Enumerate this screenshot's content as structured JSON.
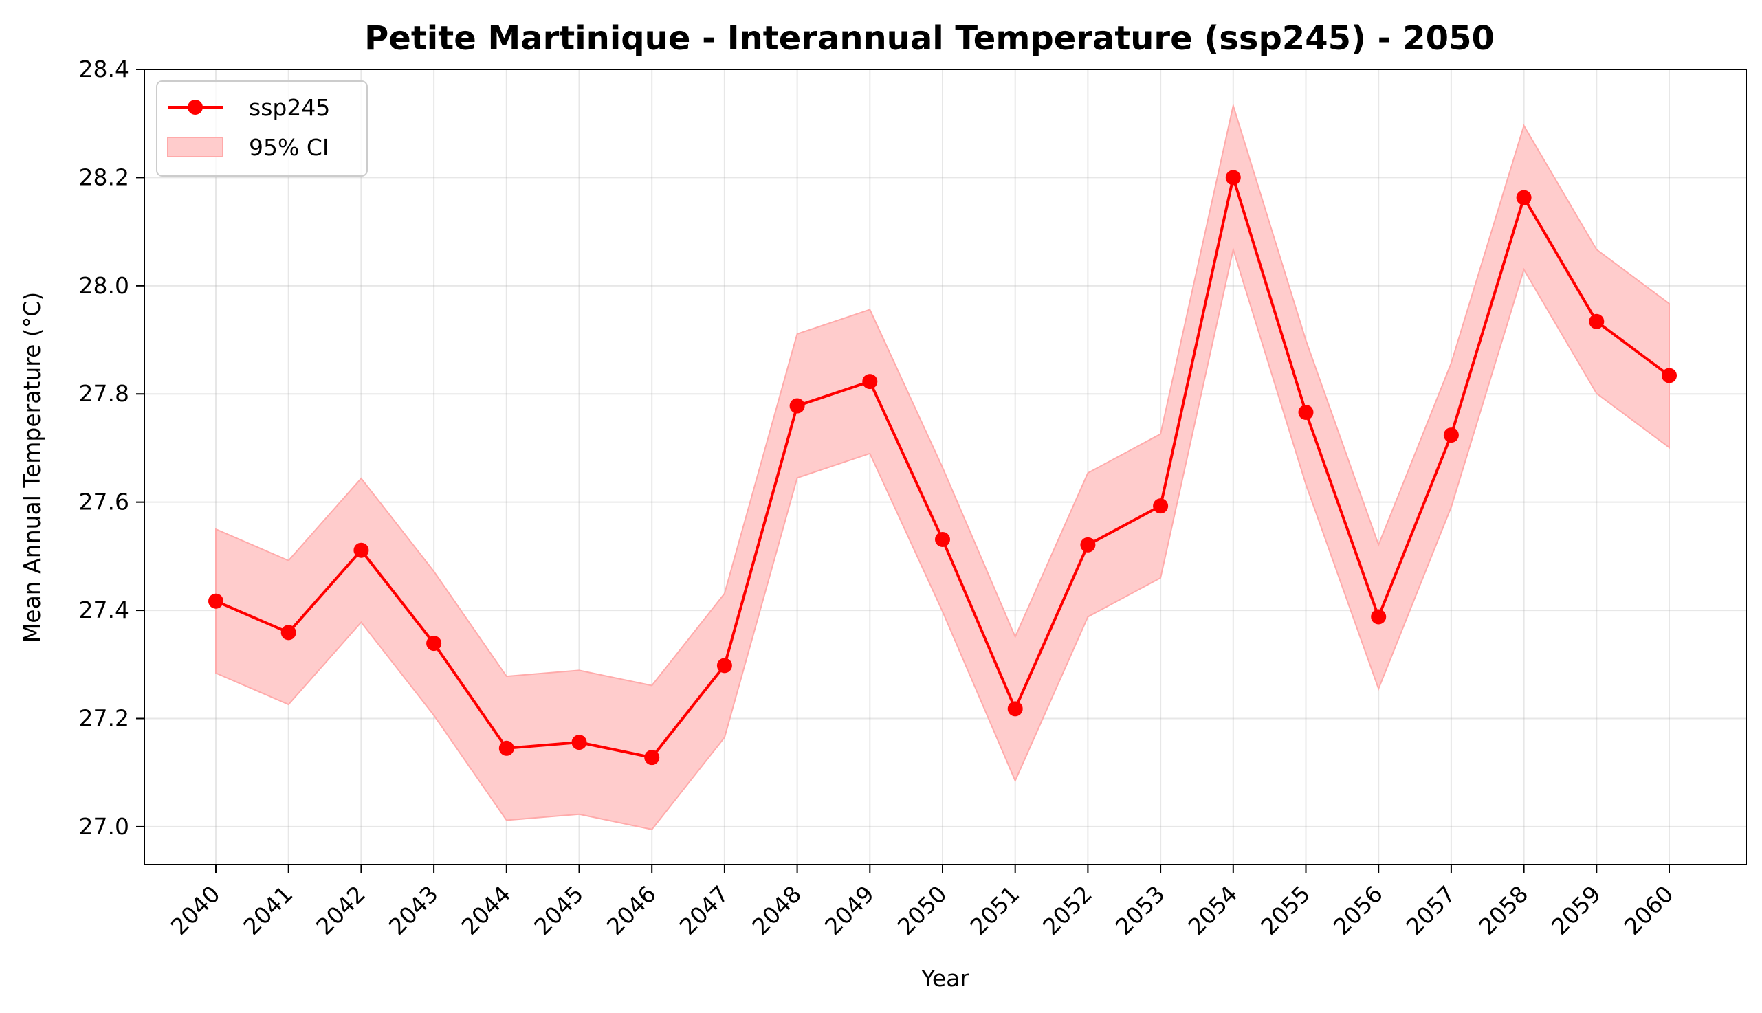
{
  "chart_data": {
    "type": "line",
    "title": "Petite Martinique - Interannual Temperature (ssp245) - 2050",
    "xlabel": "Year",
    "ylabel": "Mean Annual Temperature (°C)",
    "categories": [
      "2040",
      "2041",
      "2042",
      "2043",
      "2044",
      "2045",
      "2046",
      "2047",
      "2048",
      "2049",
      "2050",
      "2051",
      "2052",
      "2053",
      "2054",
      "2055",
      "2056",
      "2057",
      "2058",
      "2059",
      "2060"
    ],
    "ylim": [
      26.93,
      28.4
    ],
    "yticks": [
      "27.0",
      "27.2",
      "27.4",
      "27.6",
      "27.8",
      "28.0",
      "28.2",
      "28.4"
    ],
    "grid": true,
    "legend_position": "upper left",
    "series": [
      {
        "name": "ssp245",
        "color": "#ff0000",
        "marker": "circle",
        "values": [
          27.417,
          27.359,
          27.511,
          27.339,
          27.145,
          27.156,
          27.128,
          27.298,
          27.778,
          27.823,
          27.531,
          27.218,
          27.521,
          27.593,
          28.2,
          27.766,
          27.388,
          27.724,
          28.163,
          27.934,
          27.834
        ]
      }
    ],
    "confidence_band": {
      "name": "95% CI",
      "color": "#ffcccc",
      "edge_color": "#ffaaaa",
      "lower": [
        27.284,
        27.226,
        27.378,
        27.206,
        27.012,
        27.023,
        26.995,
        27.165,
        27.645,
        27.69,
        27.398,
        27.085,
        27.388,
        27.46,
        28.067,
        27.633,
        27.255,
        27.591,
        28.03,
        27.801,
        27.701
      ],
      "upper": [
        27.55,
        27.492,
        27.644,
        27.472,
        27.278,
        27.289,
        27.261,
        27.431,
        27.911,
        27.956,
        27.664,
        27.351,
        27.654,
        27.726,
        28.333,
        27.899,
        27.521,
        27.857,
        28.296,
        28.067,
        27.967
      ]
    }
  }
}
